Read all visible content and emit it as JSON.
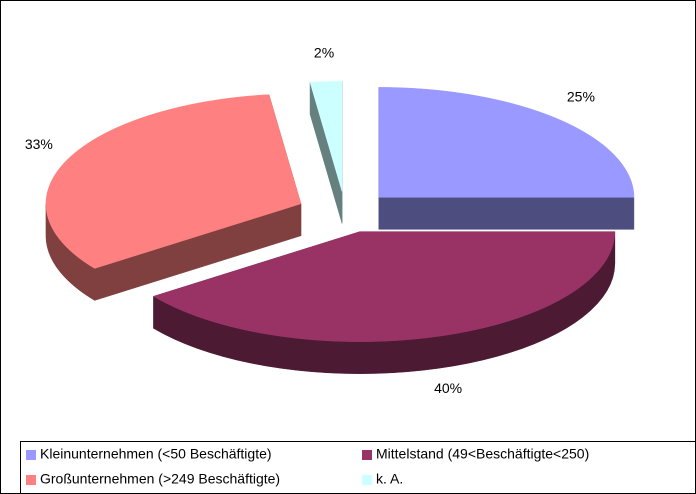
{
  "chart_data": {
    "type": "pie",
    "categories": [
      "Kleinunternehmen (<50 Beschäftigte)",
      "Mittelstand (49<Beschäftigte<250)",
      "Großunternehmen (>249 Beschäftigte)",
      "k. A."
    ],
    "values": [
      25,
      40,
      33,
      2
    ],
    "value_labels": [
      "25%",
      "40%",
      "33%",
      "2%"
    ],
    "colors": [
      "#9999ff",
      "#993366",
      "#ff8080",
      "#ccffff"
    ],
    "legend": "bottom"
  }
}
